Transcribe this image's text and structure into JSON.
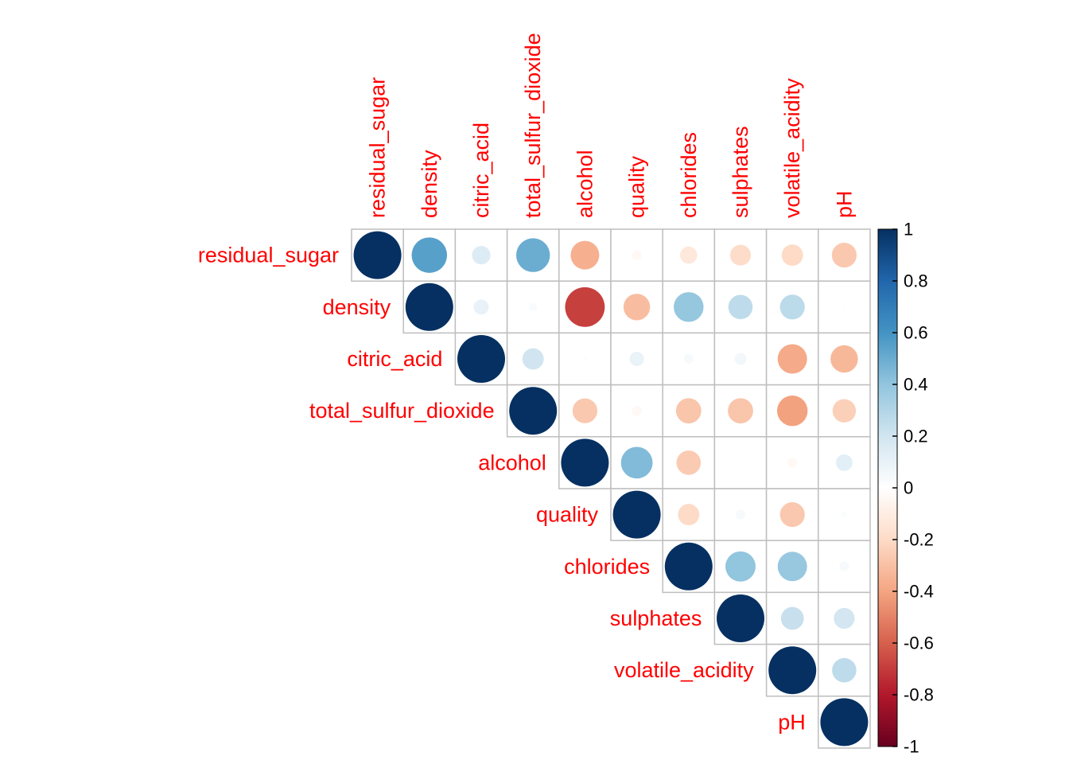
{
  "chart_data": {
    "type": "heatmap",
    "style": "circle correlation matrix, upper triangle",
    "variables": [
      "residual_sugar",
      "density",
      "citric_acid",
      "total_sulfur_dioxide",
      "alcohol",
      "quality",
      "chlorides",
      "sulphates",
      "volatile_acidity",
      "pH"
    ],
    "label_color": "#FF0000",
    "grid_color": "#BEBEBE",
    "cells": [
      {
        "row": 0,
        "col": 0,
        "value": 1.0
      },
      {
        "row": 0,
        "col": 1,
        "value": 0.55
      },
      {
        "row": 0,
        "col": 2,
        "value": 0.15
      },
      {
        "row": 0,
        "col": 3,
        "value": 0.5
      },
      {
        "row": 0,
        "col": 4,
        "value": -0.36
      },
      {
        "row": 0,
        "col": 5,
        "value": -0.04
      },
      {
        "row": 0,
        "col": 6,
        "value": -0.13
      },
      {
        "row": 0,
        "col": 7,
        "value": -0.19
      },
      {
        "row": 0,
        "col": 8,
        "value": -0.2
      },
      {
        "row": 0,
        "col": 9,
        "value": -0.27
      },
      {
        "row": 1,
        "col": 1,
        "value": 1.0
      },
      {
        "row": 1,
        "col": 2,
        "value": 0.1
      },
      {
        "row": 1,
        "col": 3,
        "value": 0.03
      },
      {
        "row": 1,
        "col": 4,
        "value": -0.69
      },
      {
        "row": 1,
        "col": 5,
        "value": -0.31
      },
      {
        "row": 1,
        "col": 6,
        "value": 0.39
      },
      {
        "row": 1,
        "col": 7,
        "value": 0.26
      },
      {
        "row": 1,
        "col": 8,
        "value": 0.27
      },
      {
        "row": 1,
        "col": 9,
        "value": 0.01
      },
      {
        "row": 2,
        "col": 2,
        "value": 1.0
      },
      {
        "row": 2,
        "col": 3,
        "value": 0.2
      },
      {
        "row": 2,
        "col": 4,
        "value": -0.01
      },
      {
        "row": 2,
        "col": 5,
        "value": 0.09
      },
      {
        "row": 2,
        "col": 6,
        "value": 0.04
      },
      {
        "row": 2,
        "col": 7,
        "value": 0.06
      },
      {
        "row": 2,
        "col": 8,
        "value": -0.38
      },
      {
        "row": 2,
        "col": 9,
        "value": -0.33
      },
      {
        "row": 3,
        "col": 3,
        "value": 1.0
      },
      {
        "row": 3,
        "col": 4,
        "value": -0.27
      },
      {
        "row": 3,
        "col": 5,
        "value": -0.04
      },
      {
        "row": 3,
        "col": 6,
        "value": -0.28
      },
      {
        "row": 3,
        "col": 7,
        "value": -0.28
      },
      {
        "row": 3,
        "col": 8,
        "value": -0.41
      },
      {
        "row": 3,
        "col": 9,
        "value": -0.24
      },
      {
        "row": 4,
        "col": 4,
        "value": 1.0
      },
      {
        "row": 4,
        "col": 5,
        "value": 0.44
      },
      {
        "row": 4,
        "col": 6,
        "value": -0.26
      },
      {
        "row": 4,
        "col": 7,
        "value": -0.0
      },
      {
        "row": 4,
        "col": 8,
        "value": -0.04
      },
      {
        "row": 4,
        "col": 9,
        "value": 0.12
      },
      {
        "row": 5,
        "col": 5,
        "value": 1.0
      },
      {
        "row": 5,
        "col": 6,
        "value": -0.2
      },
      {
        "row": 5,
        "col": 7,
        "value": 0.04
      },
      {
        "row": 5,
        "col": 8,
        "value": -0.27
      },
      {
        "row": 5,
        "col": 9,
        "value": 0.02
      },
      {
        "row": 6,
        "col": 6,
        "value": 1.0
      },
      {
        "row": 6,
        "col": 7,
        "value": 0.4
      },
      {
        "row": 6,
        "col": 8,
        "value": 0.38
      },
      {
        "row": 6,
        "col": 9,
        "value": 0.04
      },
      {
        "row": 7,
        "col": 7,
        "value": 1.0
      },
      {
        "row": 7,
        "col": 8,
        "value": 0.23
      },
      {
        "row": 7,
        "col": 9,
        "value": 0.19
      },
      {
        "row": 8,
        "col": 8,
        "value": 1.0
      },
      {
        "row": 8,
        "col": 9,
        "value": 0.26
      },
      {
        "row": 9,
        "col": 9,
        "value": 1.0
      }
    ],
    "colorbar": {
      "range": [
        -1,
        1
      ],
      "ticks": [
        "1",
        "0.8",
        "0.6",
        "0.4",
        "0.2",
        "0",
        "-0.2",
        "-0.4",
        "-0.6",
        "-0.8",
        "-1"
      ],
      "palette": [
        "#67001F",
        "#B2182B",
        "#D6604D",
        "#F4A582",
        "#FDDBC7",
        "#FFFFFF",
        "#D1E5F0",
        "#92C5DE",
        "#4393C3",
        "#2166AC",
        "#053061"
      ]
    }
  }
}
